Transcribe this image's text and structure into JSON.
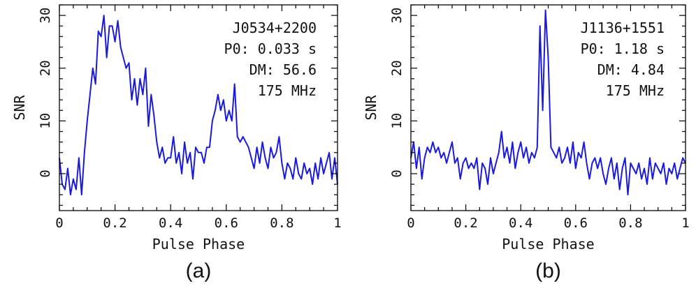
{
  "chart_data": [
    {
      "type": "line",
      "panel_label": "(a)",
      "xlabel": "Pulse Phase",
      "ylabel": "SNR",
      "xlim": [
        0,
        1
      ],
      "ylim": [
        -7,
        32
      ],
      "x_ticks": [
        0,
        0.2,
        0.4,
        0.6,
        0.8,
        1
      ],
      "x_tick_labels": [
        "0",
        "0.2",
        "0.4",
        "0.6",
        "0.8",
        "1"
      ],
      "y_ticks": [
        0,
        10,
        20,
        30
      ],
      "y_tick_labels": [
        "0",
        "10",
        "20",
        "30"
      ],
      "annotations": [
        "J0534+2200",
        "P0: 0.033 s",
        "DM: 56.6",
        "175 MHz"
      ],
      "legend": "none",
      "series": [
        {
          "name": "J0534+2200",
          "color": "#1a1adc",
          "x": [
            0,
            0.01,
            0.02,
            0.03,
            0.04,
            0.05,
            0.06,
            0.07,
            0.08,
            0.09,
            0.1,
            0.11,
            0.12,
            0.13,
            0.14,
            0.15,
            0.16,
            0.17,
            0.18,
            0.19,
            0.2,
            0.21,
            0.22,
            0.23,
            0.24,
            0.25,
            0.26,
            0.27,
            0.28,
            0.29,
            0.3,
            0.31,
            0.32,
            0.33,
            0.34,
            0.35,
            0.36,
            0.37,
            0.38,
            0.39,
            0.4,
            0.41,
            0.42,
            0.43,
            0.44,
            0.45,
            0.46,
            0.47,
            0.48,
            0.49,
            0.5,
            0.51,
            0.52,
            0.53,
            0.54,
            0.55,
            0.56,
            0.57,
            0.58,
            0.59,
            0.6,
            0.61,
            0.62,
            0.63,
            0.64,
            0.65,
            0.66,
            0.67,
            0.68,
            0.69,
            0.7,
            0.71,
            0.72,
            0.73,
            0.74,
            0.75,
            0.76,
            0.77,
            0.78,
            0.79,
            0.8,
            0.81,
            0.82,
            0.83,
            0.84,
            0.85,
            0.86,
            0.87,
            0.88,
            0.89,
            0.9,
            0.91,
            0.92,
            0.93,
            0.94,
            0.95,
            0.96,
            0.97,
            0.98,
            0.99,
            1.0
          ],
          "y": [
            3,
            -2,
            -3,
            1,
            -4,
            -1,
            -3,
            3,
            -4,
            4,
            10,
            15,
            20,
            17,
            27,
            26,
            30,
            22,
            28,
            28,
            25,
            29,
            24,
            22,
            20,
            21,
            14,
            18,
            13,
            18,
            15,
            20,
            9,
            15,
            11,
            6,
            3,
            5,
            2,
            3,
            3,
            7,
            2,
            4,
            0,
            6,
            2,
            4,
            -1,
            5,
            4,
            4,
            2,
            5,
            5,
            10,
            12,
            15,
            12,
            14,
            10,
            12,
            10,
            17,
            7,
            6,
            7,
            6,
            5,
            3,
            1,
            5,
            2,
            6,
            3,
            1,
            5,
            3,
            4,
            7,
            2,
            -1,
            2,
            1,
            -1,
            3,
            0,
            -1,
            2,
            0,
            1,
            -2,
            2,
            -1,
            3,
            0,
            2,
            4,
            -1,
            3,
            -2
          ]
        }
      ]
    },
    {
      "type": "line",
      "panel_label": "(b)",
      "xlabel": "Pulse Phase",
      "ylabel": "SNR",
      "xlim": [
        0,
        1
      ],
      "ylim": [
        -7,
        32
      ],
      "x_ticks": [
        0,
        0.2,
        0.4,
        0.6,
        0.8,
        1
      ],
      "x_tick_labels": [
        "0",
        "0.2",
        "0.4",
        "0.6",
        "0.8",
        "1"
      ],
      "y_ticks": [
        0,
        10,
        20,
        30
      ],
      "y_tick_labels": [
        "0",
        "10",
        "20",
        "30"
      ],
      "annotations": [
        "J1136+1551",
        "P0: 1.18 s",
        "DM: 4.84",
        "175 MHz"
      ],
      "legend": "none",
      "series": [
        {
          "name": "J1136+1551",
          "color": "#1a1adc",
          "x": [
            0,
            0.01,
            0.02,
            0.03,
            0.04,
            0.05,
            0.06,
            0.07,
            0.08,
            0.09,
            0.1,
            0.11,
            0.12,
            0.13,
            0.14,
            0.15,
            0.16,
            0.17,
            0.18,
            0.19,
            0.2,
            0.21,
            0.22,
            0.23,
            0.24,
            0.25,
            0.26,
            0.27,
            0.28,
            0.29,
            0.3,
            0.31,
            0.32,
            0.33,
            0.34,
            0.35,
            0.36,
            0.37,
            0.38,
            0.39,
            0.4,
            0.41,
            0.42,
            0.43,
            0.44,
            0.45,
            0.46,
            0.47,
            0.48,
            0.49,
            0.5,
            0.51,
            0.52,
            0.53,
            0.54,
            0.55,
            0.56,
            0.57,
            0.58,
            0.59,
            0.6,
            0.61,
            0.62,
            0.63,
            0.64,
            0.65,
            0.66,
            0.67,
            0.68,
            0.69,
            0.7,
            0.71,
            0.72,
            0.73,
            0.74,
            0.75,
            0.76,
            0.77,
            0.78,
            0.79,
            0.8,
            0.81,
            0.82,
            0.83,
            0.84,
            0.85,
            0.86,
            0.87,
            0.88,
            0.89,
            0.9,
            0.91,
            0.92,
            0.93,
            0.94,
            0.95,
            0.96,
            0.97,
            0.98,
            0.99,
            1.0
          ],
          "y": [
            3,
            6,
            1,
            5,
            -1,
            3,
            5,
            4,
            6,
            4,
            5,
            3,
            4,
            2,
            4,
            6,
            2,
            3,
            -1,
            2,
            3,
            1,
            2,
            1,
            3,
            -3,
            2,
            1,
            -2,
            3,
            0,
            2,
            4,
            8,
            3,
            5,
            2,
            6,
            1,
            4,
            6,
            3,
            5,
            2,
            4,
            3,
            5,
            28,
            12,
            31,
            22,
            5,
            4,
            3,
            5,
            2,
            3,
            5,
            2,
            6,
            1,
            4,
            3,
            6,
            2,
            -1,
            2,
            3,
            1,
            3,
            0,
            -2,
            1,
            3,
            -1,
            2,
            -3,
            1,
            3,
            -4,
            2,
            1,
            0,
            2,
            -1,
            1,
            -2,
            3,
            -1,
            2,
            1,
            0,
            2,
            -2,
            1,
            0,
            2,
            -1,
            1,
            3,
            2
          ]
        }
      ]
    }
  ]
}
